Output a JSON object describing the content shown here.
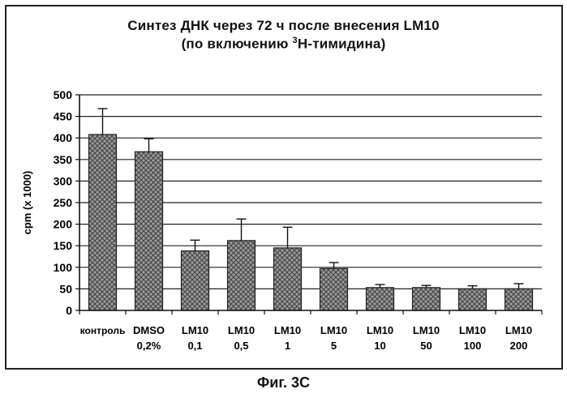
{
  "title": {
    "line1": "Синтез ДНК через 72 ч после внесения LM10",
    "line2_prefix": "(по включению ",
    "line2_sup": "3",
    "line2_suffix": "Н-тимидина)"
  },
  "figure_caption": "Фиг. 3С",
  "colors": {
    "bar_fill": "#9a9a9a",
    "bar_hatch": "#4a4a4a",
    "grid": "#222222",
    "axis": "#111111"
  },
  "chart_data": {
    "type": "bar",
    "title": "Синтез ДНК через 72 ч после внесения LM10 (по включению 3Н-тимидина)",
    "ylabel": "cpm (x 1000)",
    "xlabel": "",
    "ylim": [
      0,
      500
    ],
    "yticks": [
      "0",
      "50",
      "100",
      "150",
      "200",
      "250",
      "300",
      "350",
      "400",
      "450",
      "500"
    ],
    "ytick_values": [
      0,
      50,
      100,
      150,
      200,
      250,
      300,
      350,
      400,
      450,
      500
    ],
    "grid": true,
    "categories": [
      [
        "контроль"
      ],
      [
        "DMSO",
        "0,2%"
      ],
      [
        "LM10",
        "0,1"
      ],
      [
        "LM10",
        "0,5"
      ],
      [
        "LM10",
        "1"
      ],
      [
        "LM10",
        "5"
      ],
      [
        "LM10",
        "10"
      ],
      [
        "LM10",
        "50"
      ],
      [
        "LM10",
        "100"
      ],
      [
        "LM10",
        "200"
      ]
    ],
    "values": [
      408,
      368,
      138,
      162,
      145,
      97,
      53,
      53,
      50,
      50
    ],
    "errors": [
      60,
      30,
      25,
      50,
      48,
      14,
      7,
      5,
      7,
      12
    ]
  }
}
